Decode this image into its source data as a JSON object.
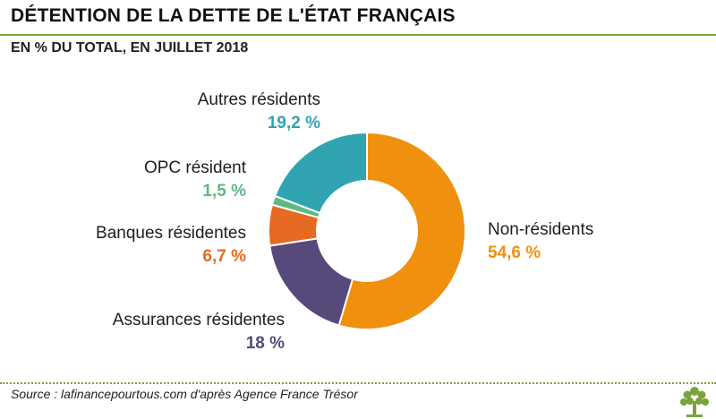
{
  "title": "DÉTENTION DE LA DETTE DE L'ÉTAT FRANÇAIS",
  "subtitle": "EN % DU TOTAL, EN JUILLET 2018",
  "source": "Source : lafinancepourtous.com d'après Agence France Trésor",
  "colors": {
    "accent": "#7aa33a"
  },
  "chart_data": {
    "type": "pie",
    "donut": true,
    "title": "DÉTENTION DE LA DETTE DE L'ÉTAT FRANÇAIS",
    "subtitle": "EN % DU TOTAL, EN JUILLET 2018",
    "slices": [
      {
        "name": "Non-résidents",
        "value": 54.6,
        "label": "54,6 %",
        "color": "#f0900f"
      },
      {
        "name": "Assurances résidentes",
        "value": 18,
        "label": "18 %",
        "color": "#574a7a"
      },
      {
        "name": "Banques résidentes",
        "value": 6.7,
        "label": "6,7 %",
        "color": "#e56b22"
      },
      {
        "name": "OPC résident",
        "value": 1.5,
        "label": "1,5 %",
        "color": "#5db884"
      },
      {
        "name": "Autres résidents",
        "value": 19.2,
        "label": "19,2 %",
        "color": "#31a4b2"
      }
    ]
  }
}
